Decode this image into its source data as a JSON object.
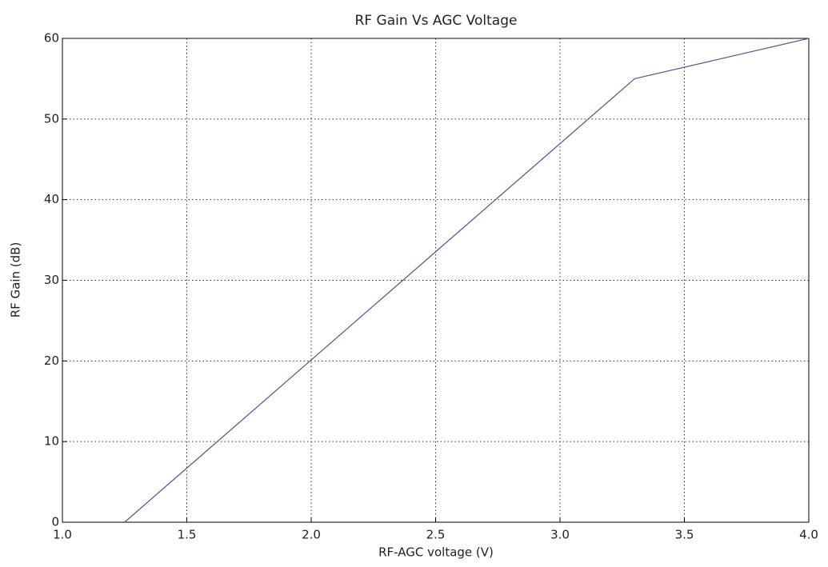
{
  "chart_data": {
    "type": "line",
    "title": "RF Gain Vs AGC Voltage",
    "x_label": "RF-AGC voltage (V)",
    "y_label": "RF Gain (dB)",
    "x": [
      1.25,
      3.3,
      4.0
    ],
    "series": [
      {
        "name": "RF Gain",
        "color": "#5b5b9c",
        "values": [
          0,
          55,
          60
        ]
      }
    ],
    "xlim": [
      1.0,
      4.0
    ],
    "xticks": [
      {
        "value": 1.0,
        "label": "1.0"
      },
      1.5,
      {
        "value": 2.0,
        "label": "2.0"
      },
      2.5,
      {
        "value": 3.0,
        "label": "3.0"
      },
      3.5,
      {
        "value": 4.0,
        "label": "4.0"
      }
    ],
    "ylim": [
      0,
      60
    ],
    "yticks": [
      0,
      10,
      20,
      30,
      40,
      50,
      60
    ],
    "grid": true
  }
}
